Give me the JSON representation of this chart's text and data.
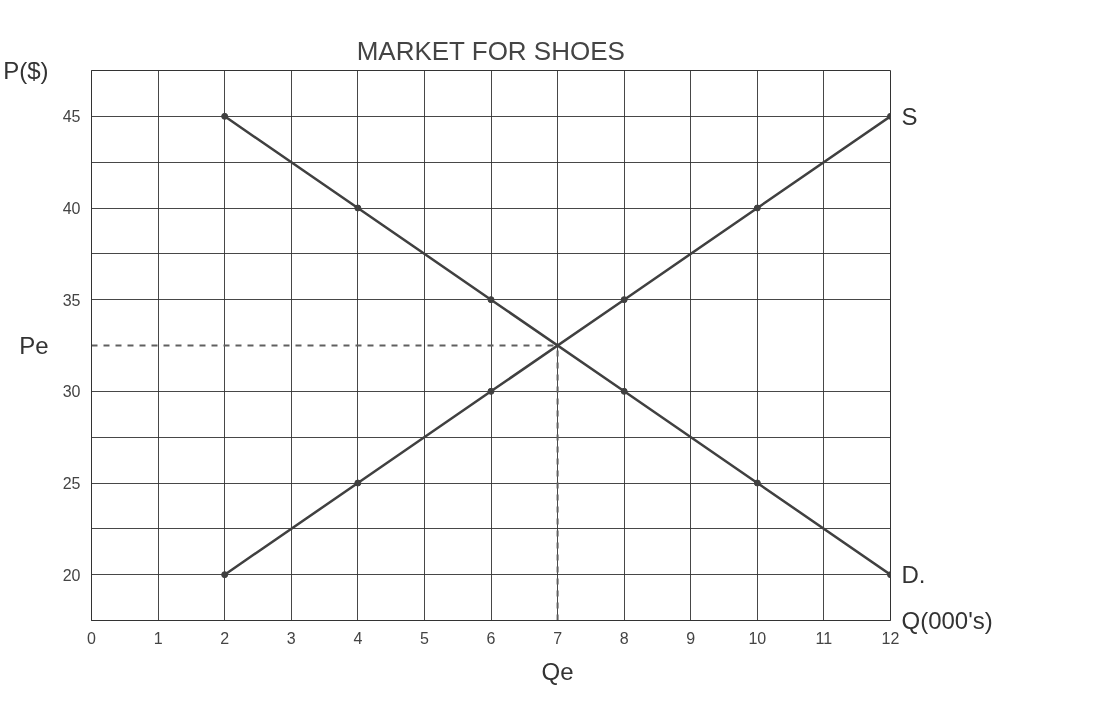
{
  "chart_data": {
    "type": "line",
    "title": "MARKET FOR SHOES",
    "xlabel": "Q(000's)",
    "ylabel": "P($)",
    "x": [
      2,
      4,
      6,
      8,
      10,
      12
    ],
    "series": [
      {
        "name": "D.",
        "color": "#404040",
        "values": [
          45,
          40,
          35,
          30,
          25,
          20
        ]
      },
      {
        "name": "S",
        "color": "#404040",
        "values": [
          20,
          25,
          30,
          35,
          40,
          45
        ]
      }
    ],
    "xlim": [
      0,
      12
    ],
    "ylim": [
      17.5,
      47.5
    ],
    "xticks": [
      0,
      1,
      2,
      3,
      4,
      5,
      6,
      7,
      8,
      9,
      10,
      11,
      12
    ],
    "yticks": [
      20,
      {
        "value": 22.5,
        "label": null
      },
      25,
      {
        "value": 27.5,
        "label": null
      },
      30,
      35,
      {
        "value": 37.5,
        "label": null
      },
      40,
      {
        "value": 42.5,
        "label": null
      },
      45
    ],
    "ref_lines": [
      {
        "axis": "y",
        "value": 32.5,
        "label": "Pe",
        "line_style": "dashed",
        "color": "#606060"
      },
      {
        "axis": "x",
        "value": 7,
        "label": "Qe",
        "line_style": "dashed",
        "color": "#606060"
      }
    ],
    "grid": true,
    "marker": "circle",
    "line_style": "solid",
    "legend": false
  }
}
